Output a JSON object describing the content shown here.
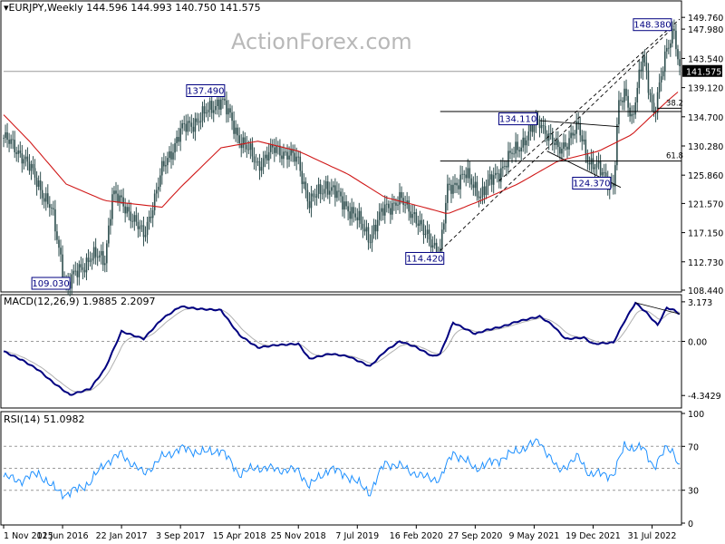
{
  "panes": {
    "price": {
      "title": "EURJPY,Weekly",
      "ohlc": "144.596 144.993 140.750 141.575"
    },
    "macd": {
      "title": "MACD(12,26,9)",
      "values": "1.9885 2.2097"
    },
    "rsi": {
      "title": "RSI(14)",
      "values": "51.0982"
    }
  },
  "watermark": "ActionForex.com",
  "colors": {
    "candle": "#2f4f4f",
    "sma": "#d01818",
    "macd": "#000080",
    "signal": "#b0b0b0",
    "rsi": "#1e90ff",
    "label_border": "#000080",
    "last_price_bg": "#000000"
  },
  "chart_data": {
    "type": "candlestick",
    "symbol": "EURJPY",
    "timeframe": "Weekly",
    "ylim": [
      108.44,
      151.98
    ],
    "y_ticks": [
      "149.760",
      "147.980",
      "143.540",
      "139.120",
      "134.700",
      "130.280",
      "125.860",
      "121.570",
      "117.150",
      "112.730",
      "108.440"
    ],
    "last_price": "141.575",
    "x_ticks": [
      "1 Nov 2015",
      "12 Jun 2016",
      "22 Jan 2017",
      "3 Sep 2017",
      "15 Apr 2018",
      "25 Nov 2018",
      "7 Jul 2019",
      "16 Feb 2020",
      "27 Sep 2020",
      "9 May 2021",
      "19 Dec 2021",
      "31 Jul 2022"
    ],
    "price_path": [
      {
        "date": "2015-11-01",
        "value": 131.5
      },
      {
        "date": "2016-01-10",
        "value": 129.0
      },
      {
        "date": "2016-03-13",
        "value": 124.5
      },
      {
        "date": "2016-05-01",
        "value": 120.5
      },
      {
        "date": "2016-06-26",
        "value": 109.03
      },
      {
        "date": "2016-09-25",
        "value": 113.5
      },
      {
        "date": "2016-11-20",
        "value": 113.2
      },
      {
        "date": "2016-12-18",
        "value": 123.0
      },
      {
        "date": "2017-02-19",
        "value": 120.5
      },
      {
        "date": "2017-04-16",
        "value": 116.5
      },
      {
        "date": "2017-06-25",
        "value": 126.5
      },
      {
        "date": "2017-09-03",
        "value": 132.5
      },
      {
        "date": "2017-12-03",
        "value": 135.0
      },
      {
        "date": "2018-02-04",
        "value": 137.49
      },
      {
        "date": "2018-04-15",
        "value": 131.5
      },
      {
        "date": "2018-06-24",
        "value": 127.5
      },
      {
        "date": "2018-09-02",
        "value": 130.0
      },
      {
        "date": "2018-11-25",
        "value": 128.0
      },
      {
        "date": "2019-01-06",
        "value": 121.5
      },
      {
        "date": "2019-03-10",
        "value": 124.5
      },
      {
        "date": "2019-06-02",
        "value": 121.0
      },
      {
        "date": "2019-08-25",
        "value": 116.5
      },
      {
        "date": "2019-10-20",
        "value": 121.0
      },
      {
        "date": "2019-12-15",
        "value": 122.0
      },
      {
        "date": "2020-02-09",
        "value": 120.0
      },
      {
        "date": "2020-03-15",
        "value": 117.0
      },
      {
        "date": "2020-05-17",
        "value": 114.42
      },
      {
        "date": "2020-06-14",
        "value": 123.5
      },
      {
        "date": "2020-08-16",
        "value": 126.0
      },
      {
        "date": "2020-10-18",
        "value": 123.0
      },
      {
        "date": "2020-12-27",
        "value": 126.5
      },
      {
        "date": "2021-03-07",
        "value": 130.0
      },
      {
        "date": "2021-05-30",
        "value": 134.11
      },
      {
        "date": "2021-08-08",
        "value": 129.5
      },
      {
        "date": "2021-10-24",
        "value": 133.0
      },
      {
        "date": "2021-12-05",
        "value": 128.0
      },
      {
        "date": "2022-03-06",
        "value": 124.37
      },
      {
        "date": "2022-03-27",
        "value": 136.5
      },
      {
        "date": "2022-04-24",
        "value": 138.0
      },
      {
        "date": "2022-05-15",
        "value": 134.5
      },
      {
        "date": "2022-06-26",
        "value": 143.5
      },
      {
        "date": "2022-08-07",
        "value": 135.5
      },
      {
        "date": "2022-09-25",
        "value": 144.5
      },
      {
        "date": "2022-10-23",
        "value": 148.38
      },
      {
        "date": "2022-11-13",
        "value": 141.575
      }
    ],
    "sma_path": [
      {
        "date": "2015-11-01",
        "value": 135.0
      },
      {
        "date": "2016-02-07",
        "value": 131.0
      },
      {
        "date": "2016-06-26",
        "value": 124.5
      },
      {
        "date": "2016-11-20",
        "value": 122.0
      },
      {
        "date": "2017-06-25",
        "value": 121.0
      },
      {
        "date": "2017-09-03",
        "value": 124.0
      },
      {
        "date": "2018-02-04",
        "value": 130.0
      },
      {
        "date": "2018-06-24",
        "value": 131.0
      },
      {
        "date": "2018-11-25",
        "value": 129.5
      },
      {
        "date": "2019-06-02",
        "value": 126.0
      },
      {
        "date": "2019-10-20",
        "value": 122.5
      },
      {
        "date": "2020-03-15",
        "value": 121.0
      },
      {
        "date": "2020-06-14",
        "value": 120.0
      },
      {
        "date": "2020-10-18",
        "value": 122.0
      },
      {
        "date": "2021-03-07",
        "value": 124.5
      },
      {
        "date": "2021-08-08",
        "value": 128.0
      },
      {
        "date": "2022-01-09",
        "value": 129.5
      },
      {
        "date": "2022-05-15",
        "value": 132.0
      },
      {
        "date": "2022-09-25",
        "value": 137.0
      },
      {
        "date": "2022-11-13",
        "value": 138.7
      }
    ],
    "annotations": [
      {
        "label": "137.490",
        "date": "2018-02-04",
        "value": 137.49,
        "placement": "above"
      },
      {
        "label": "109.030",
        "date": "2016-06-26",
        "value": 109.03,
        "placement": "below"
      },
      {
        "label": "134.110",
        "date": "2021-05-30",
        "value": 134.11,
        "placement": "left"
      },
      {
        "label": "124.370",
        "date": "2022-03-06",
        "value": 124.37,
        "placement": "left"
      },
      {
        "label": "114.420",
        "date": "2020-05-17",
        "value": 114.42,
        "placement": "below"
      },
      {
        "label": "148.380",
        "date": "2022-10-23",
        "value": 148.38,
        "placement": "left"
      }
    ],
    "fib_levels": [
      {
        "label": "38.2",
        "value": 136.0,
        "start_date": "2022-08-21"
      },
      {
        "label": "61.8",
        "value": 128.0,
        "start_date": "2020-05-17"
      },
      {
        "label": "",
        "value": 135.5,
        "start_date": "2020-05-17"
      }
    ],
    "trendlines": [
      {
        "from": {
          "date": "2020-05-17",
          "value": 114.42
        },
        "to": {
          "date": "2022-10-23",
          "value": 148.38
        }
      },
      {
        "from": {
          "date": "2020-12-27",
          "value": 125.0
        },
        "to": {
          "date": "2022-11-13",
          "value": 149.5
        }
      },
      {
        "from": {
          "date": "2021-05-30",
          "value": 134.11
        },
        "to": {
          "date": "2022-03-27",
          "value": 133.2
        }
      },
      {
        "from": {
          "date": "2021-06-27",
          "value": 129.5
        },
        "to": {
          "date": "2022-04-03",
          "value": 124.0
        }
      }
    ],
    "macd": {
      "ylim": [
        -5.2,
        3.6
      ],
      "y_ticks": [
        "3.173",
        "0.00",
        "-4.3429"
      ],
      "zero_label": "0.00",
      "macd_path": [
        {
          "date": "2015-11-01",
          "value": -0.8
        },
        {
          "date": "2016-01-10",
          "value": -1.5
        },
        {
          "date": "2016-03-13",
          "value": -2.3
        },
        {
          "date": "2016-05-01",
          "value": -3.2
        },
        {
          "date": "2016-07-10",
          "value": -4.3
        },
        {
          "date": "2016-09-25",
          "value": -3.8
        },
        {
          "date": "2016-11-20",
          "value": -2.2
        },
        {
          "date": "2017-01-22",
          "value": 0.8
        },
        {
          "date": "2017-04-16",
          "value": 0.2
        },
        {
          "date": "2017-06-25",
          "value": 1.8
        },
        {
          "date": "2017-09-03",
          "value": 2.8
        },
        {
          "date": "2017-11-12",
          "value": 2.6
        },
        {
          "date": "2018-02-04",
          "value": 2.5
        },
        {
          "date": "2018-04-15",
          "value": 0.5
        },
        {
          "date": "2018-06-24",
          "value": -0.5
        },
        {
          "date": "2018-09-02",
          "value": -0.3
        },
        {
          "date": "2018-11-25",
          "value": -0.2
        },
        {
          "date": "2019-01-06",
          "value": -1.4
        },
        {
          "date": "2019-03-24",
          "value": -1.0
        },
        {
          "date": "2019-06-02",
          "value": -1.2
        },
        {
          "date": "2019-08-25",
          "value": -2.0
        },
        {
          "date": "2019-10-20",
          "value": -0.8
        },
        {
          "date": "2019-12-15",
          "value": 0.0
        },
        {
          "date": "2020-02-09",
          "value": -0.4
        },
        {
          "date": "2020-04-19",
          "value": -1.2
        },
        {
          "date": "2020-05-17",
          "value": -1.0
        },
        {
          "date": "2020-07-05",
          "value": 1.5
        },
        {
          "date": "2020-09-27",
          "value": 0.6
        },
        {
          "date": "2020-11-08",
          "value": 0.9
        },
        {
          "date": "2021-01-10",
          "value": 1.2
        },
        {
          "date": "2021-03-07",
          "value": 1.6
        },
        {
          "date": "2021-05-30",
          "value": 2.0
        },
        {
          "date": "2021-07-18",
          "value": 1.3
        },
        {
          "date": "2021-09-05",
          "value": 0.2
        },
        {
          "date": "2021-11-14",
          "value": 0.3
        },
        {
          "date": "2021-12-19",
          "value": -0.2
        },
        {
          "date": "2022-03-06",
          "value": -0.1
        },
        {
          "date": "2022-04-17",
          "value": 1.6
        },
        {
          "date": "2022-05-29",
          "value": 3.1
        },
        {
          "date": "2022-07-10",
          "value": 2.3
        },
        {
          "date": "2022-08-21",
          "value": 1.3
        },
        {
          "date": "2022-09-25",
          "value": 2.7
        },
        {
          "date": "2022-10-23",
          "value": 2.5
        },
        {
          "date": "2022-11-13",
          "value": 2.2
        }
      ],
      "trendline": {
        "from": {
          "date": "2022-05-29",
          "value": 3.1
        },
        "to": {
          "date": "2022-11-13",
          "value": 2.2
        }
      }
    },
    "rsi": {
      "ylim": [
        0,
        100
      ],
      "y_ticks": [
        "100",
        "70",
        "30",
        "0"
      ],
      "levels": [
        70,
        50,
        30
      ],
      "rsi_path": [
        {
          "date": "2015-11-01",
          "value": 42
        },
        {
          "date": "2016-01-10",
          "value": 39
        },
        {
          "date": "2016-03-13",
          "value": 46
        },
        {
          "date": "2016-05-01",
          "value": 33
        },
        {
          "date": "2016-06-26",
          "value": 26
        },
        {
          "date": "2016-09-25",
          "value": 37
        },
        {
          "date": "2016-11-20",
          "value": 55
        },
        {
          "date": "2017-01-22",
          "value": 63
        },
        {
          "date": "2017-04-16",
          "value": 45
        },
        {
          "date": "2017-06-25",
          "value": 60
        },
        {
          "date": "2017-09-03",
          "value": 68
        },
        {
          "date": "2017-12-03",
          "value": 64
        },
        {
          "date": "2018-02-04",
          "value": 67
        },
        {
          "date": "2018-04-15",
          "value": 45
        },
        {
          "date": "2018-06-24",
          "value": 51
        },
        {
          "date": "2018-09-02",
          "value": 49
        },
        {
          "date": "2018-11-25",
          "value": 48
        },
        {
          "date": "2019-01-06",
          "value": 34
        },
        {
          "date": "2019-03-24",
          "value": 50
        },
        {
          "date": "2019-06-02",
          "value": 43
        },
        {
          "date": "2019-08-25",
          "value": 28
        },
        {
          "date": "2019-10-20",
          "value": 55
        },
        {
          "date": "2019-12-15",
          "value": 52
        },
        {
          "date": "2020-03-15",
          "value": 42
        },
        {
          "date": "2020-05-17",
          "value": 40
        },
        {
          "date": "2020-07-05",
          "value": 65
        },
        {
          "date": "2020-09-27",
          "value": 50
        },
        {
          "date": "2020-12-27",
          "value": 58
        },
        {
          "date": "2021-03-07",
          "value": 66
        },
        {
          "date": "2021-05-30",
          "value": 75
        },
        {
          "date": "2021-08-08",
          "value": 48
        },
        {
          "date": "2021-10-24",
          "value": 60
        },
        {
          "date": "2021-12-05",
          "value": 45
        },
        {
          "date": "2022-03-06",
          "value": 44
        },
        {
          "date": "2022-04-17",
          "value": 70
        },
        {
          "date": "2022-06-26",
          "value": 68
        },
        {
          "date": "2022-08-07",
          "value": 52
        },
        {
          "date": "2022-09-25",
          "value": 68
        },
        {
          "date": "2022-10-23",
          "value": 65
        },
        {
          "date": "2022-11-13",
          "value": 51
        }
      ]
    }
  }
}
